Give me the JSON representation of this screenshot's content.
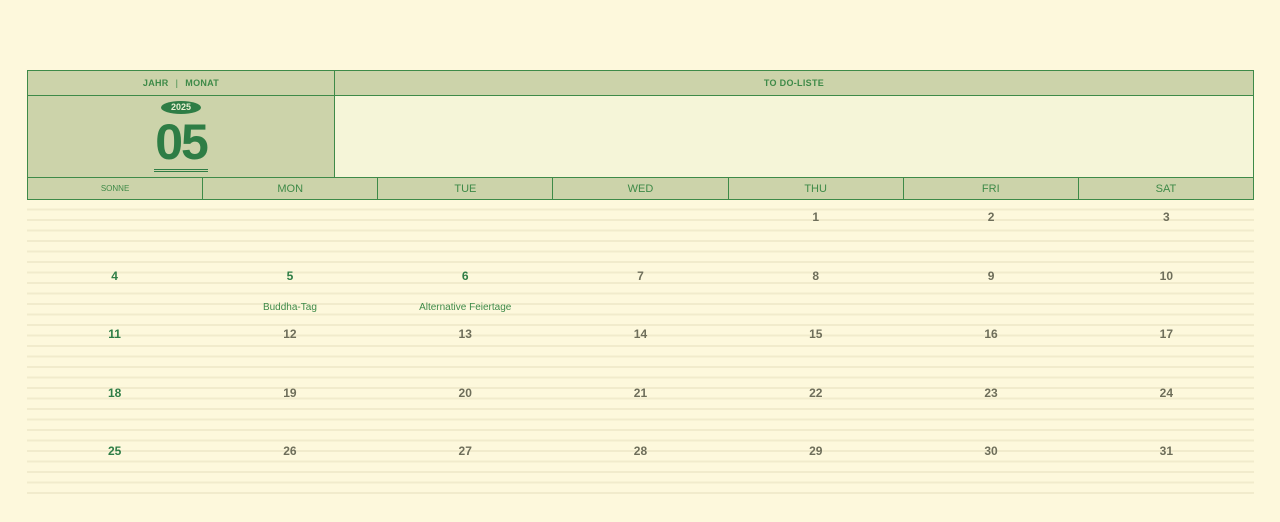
{
  "header": {
    "year_label": "JAHR",
    "month_label": "MONAT",
    "todo_label": "TO DO-LISTE",
    "year": "2025",
    "month": "05"
  },
  "weekdays": [
    "SONNE",
    "MON",
    "TUE",
    "WED",
    "THU",
    "FRI",
    "SAT"
  ],
  "weeks": [
    [
      {
        "d": ""
      },
      {
        "d": ""
      },
      {
        "d": ""
      },
      {
        "d": ""
      },
      {
        "d": "1"
      },
      {
        "d": "2"
      },
      {
        "d": "3"
      }
    ],
    [
      {
        "d": "4",
        "h": true
      },
      {
        "d": "5",
        "h": true,
        "e": "Buddha-Tag"
      },
      {
        "d": "6",
        "h": true,
        "e": "Alternative Feiertage"
      },
      {
        "d": "7"
      },
      {
        "d": "8"
      },
      {
        "d": "9"
      },
      {
        "d": "10"
      }
    ],
    [
      {
        "d": "11",
        "h": true
      },
      {
        "d": "12"
      },
      {
        "d": "13"
      },
      {
        "d": "14"
      },
      {
        "d": "15"
      },
      {
        "d": "16"
      },
      {
        "d": "17"
      }
    ],
    [
      {
        "d": "18",
        "h": true
      },
      {
        "d": "19"
      },
      {
        "d": "20"
      },
      {
        "d": "21"
      },
      {
        "d": "22"
      },
      {
        "d": "23"
      },
      {
        "d": "24"
      }
    ],
    [
      {
        "d": "25",
        "h": true
      },
      {
        "d": "26"
      },
      {
        "d": "27"
      },
      {
        "d": "28"
      },
      {
        "d": "29"
      },
      {
        "d": "30"
      },
      {
        "d": "31"
      }
    ]
  ],
  "colors": {
    "accent": "#2e7d45",
    "header_bg": "#ccd3aa",
    "page_bg": "#fdf8dc"
  }
}
